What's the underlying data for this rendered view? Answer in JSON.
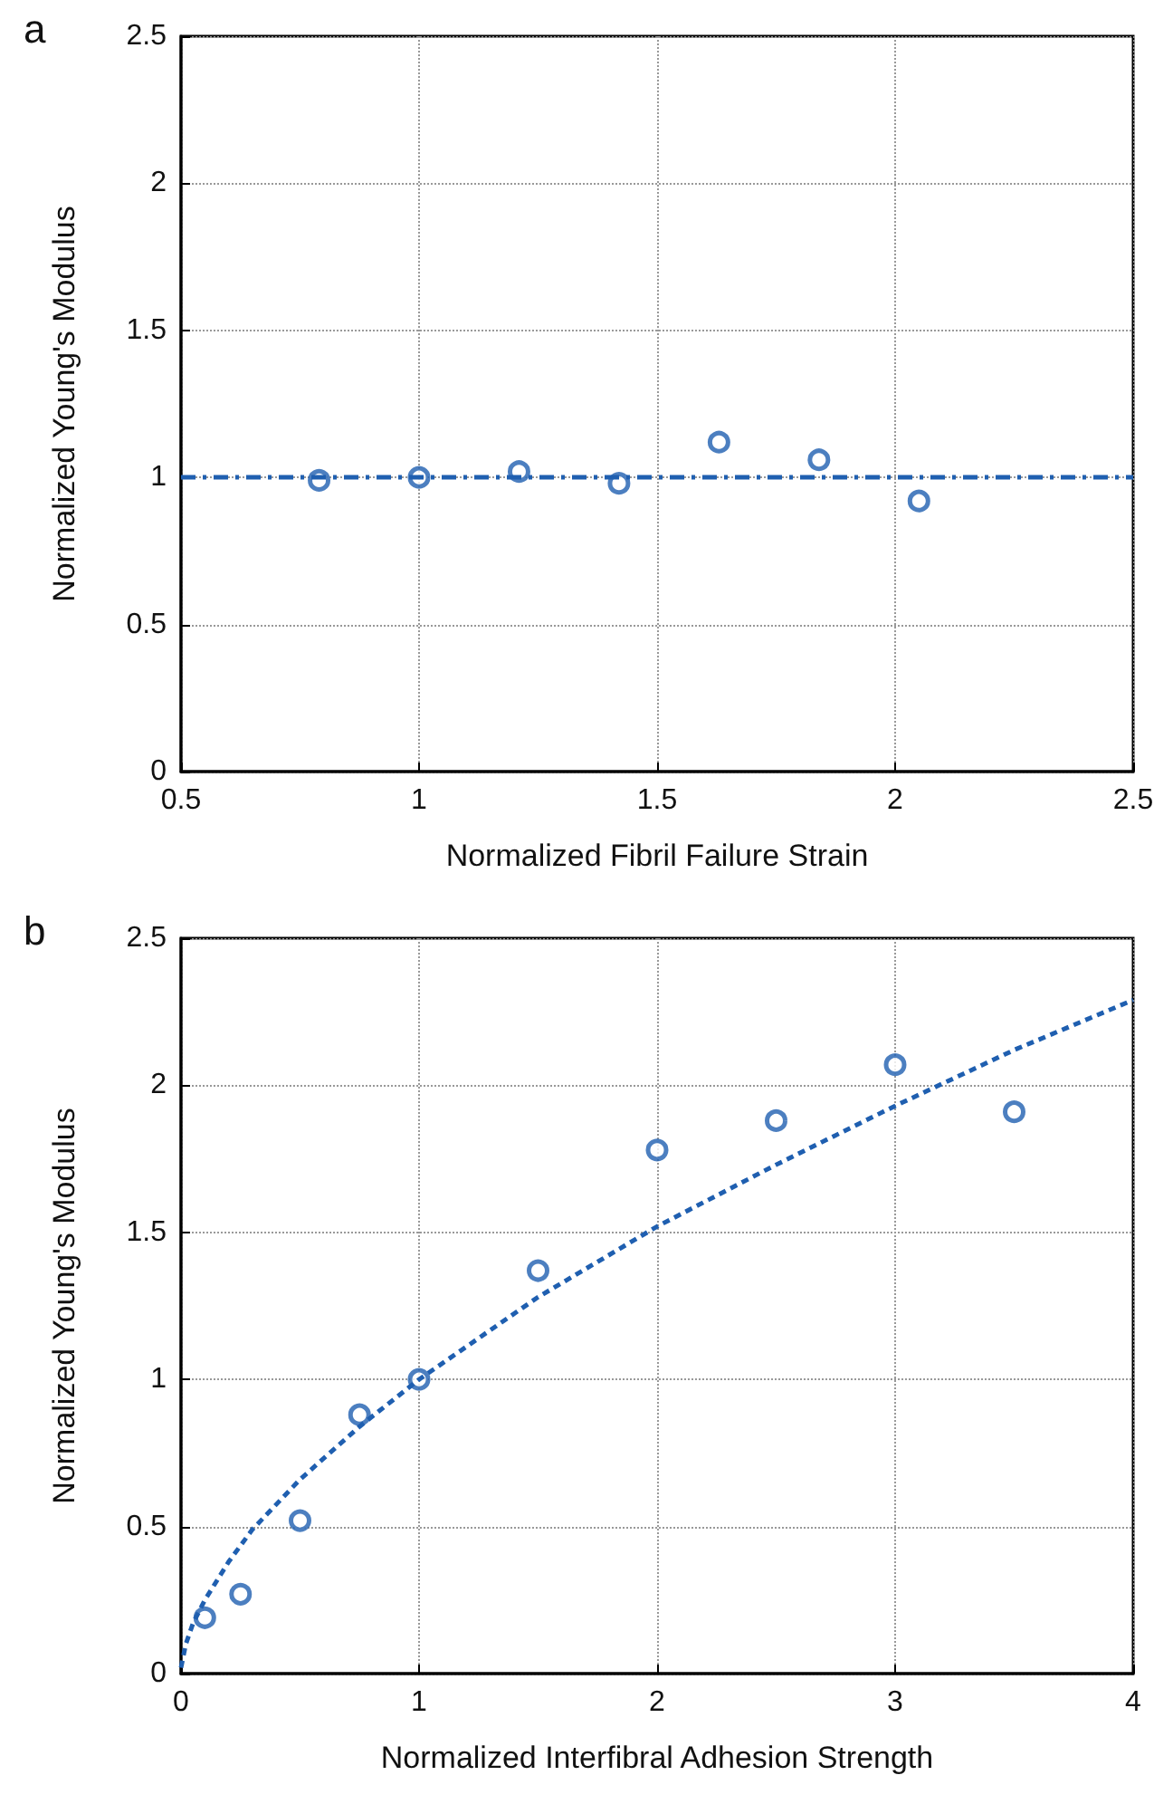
{
  "chart_data": [
    {
      "type": "scatter",
      "title": "a",
      "xlabel": "Normalized Fibril Failure Strain",
      "ylabel": "Normalized Young's Modulus",
      "xlim": [
        0.5,
        2.5
      ],
      "ylim": [
        0,
        2.5
      ],
      "xticks": [
        0.5,
        1,
        1.5,
        2,
        2.5
      ],
      "yticks": [
        0,
        0.5,
        1,
        1.5,
        2,
        2.5
      ],
      "grid": true,
      "series": [
        {
          "color": "#1f5fb0",
          "marker": "circle",
          "x": [
            0.79,
            1.0,
            1.21,
            1.42,
            1.63,
            1.84,
            2.05
          ],
          "values": [
            0.99,
            1.0,
            1.02,
            0.98,
            1.12,
            1.06,
            0.92
          ]
        }
      ],
      "ref_lines": [
        {
          "axis": "y",
          "value": 1,
          "color": "#1f5fb0",
          "line_style": "dashed"
        }
      ]
    },
    {
      "type": "scatter",
      "title": "b",
      "xlabel": "Normalized Interfibral Adhesion Strength",
      "ylabel": "Normalized Young's Modulus",
      "xlim": [
        0,
        4
      ],
      "ylim": [
        0,
        2.5
      ],
      "xticks": [
        0,
        1,
        2,
        3,
        4
      ],
      "yticks": [
        0,
        0.5,
        1,
        1.5,
        2,
        2.5
      ],
      "grid": true,
      "series": [
        {
          "color": "#1f5fb0",
          "marker": "circle",
          "x": [
            0.1,
            0.25,
            0.5,
            0.75,
            1,
            1.5,
            2,
            2.5,
            3,
            3.5
          ],
          "values": [
            0.19,
            0.27,
            0.52,
            0.88,
            1.0,
            1.37,
            1.78,
            1.88,
            2.07,
            1.91
          ]
        },
        {
          "type": "line",
          "color": "#1f5fb0",
          "marker": "none",
          "line_style": "dashed",
          "x": [
            0,
            0.02,
            0.05,
            0.1,
            0.2,
            0.3,
            0.5,
            0.75,
            1,
            1.5,
            2,
            2.5,
            3,
            3.5,
            4
          ],
          "values": [
            0.02,
            0.1,
            0.17,
            0.25,
            0.38,
            0.49,
            0.66,
            0.84,
            1.0,
            1.28,
            1.52,
            1.73,
            1.93,
            2.12,
            2.29
          ]
        }
      ]
    }
  ]
}
